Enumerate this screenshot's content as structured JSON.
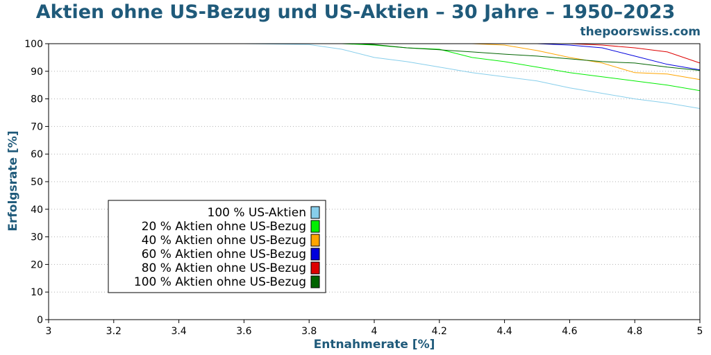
{
  "chart_data": {
    "type": "line",
    "title": "Aktien ohne US-Bezug und US-Aktien – 30 Jahre – 1950–2023",
    "source": "thepoorswiss.com",
    "xlabel": "Entnahmerate [%]",
    "ylabel": "Erfolgsrate [%]",
    "xlim": [
      3,
      5
    ],
    "ylim": [
      0,
      100
    ],
    "x_ticks": [
      "3",
      "3.2",
      "3.4",
      "3.6",
      "3.8",
      "4",
      "4.2",
      "4.4",
      "4.6",
      "4.8",
      "5"
    ],
    "y_ticks": [
      "0",
      "10",
      "20",
      "30",
      "40",
      "50",
      "60",
      "70",
      "80",
      "90",
      "100"
    ],
    "grid": "horizontal-dotted",
    "legend_position": "bottom-left",
    "series": [
      {
        "name": "100 % US-Aktien",
        "color": "#87ceeb",
        "points": [
          [
            3.0,
            100
          ],
          [
            3.6,
            100
          ],
          [
            3.8,
            99.7
          ],
          [
            3.9,
            98
          ],
          [
            4.0,
            95
          ],
          [
            4.1,
            93.5
          ],
          [
            4.2,
            91.5
          ],
          [
            4.3,
            89.5
          ],
          [
            4.4,
            88
          ],
          [
            4.5,
            86.5
          ],
          [
            4.6,
            84
          ],
          [
            4.7,
            82
          ],
          [
            4.8,
            80
          ],
          [
            4.9,
            78.5
          ],
          [
            5.0,
            76.5
          ]
        ]
      },
      {
        "name": "20 % Aktien ohne US-Bezug",
        "color": "#00ee00",
        "points": [
          [
            3.0,
            100
          ],
          [
            3.9,
            100
          ],
          [
            4.0,
            99.5
          ],
          [
            4.1,
            98.5
          ],
          [
            4.2,
            98
          ],
          [
            4.3,
            95
          ],
          [
            4.4,
            93.5
          ],
          [
            4.5,
            91.5
          ],
          [
            4.6,
            89.5
          ],
          [
            4.7,
            88
          ],
          [
            4.8,
            86.5
          ],
          [
            4.9,
            85
          ],
          [
            5.0,
            83
          ]
        ]
      },
      {
        "name": "40 % Aktien ohne US-Bezug",
        "color": "#ffa500",
        "points": [
          [
            3.0,
            100
          ],
          [
            4.3,
            100
          ],
          [
            4.4,
            99.5
          ],
          [
            4.5,
            97.5
          ],
          [
            4.6,
            95
          ],
          [
            4.7,
            93
          ],
          [
            4.8,
            89.5
          ],
          [
            4.9,
            89
          ],
          [
            5.0,
            87
          ]
        ]
      },
      {
        "name": "60 % Aktien ohne US-Bezug",
        "color": "#0000dd",
        "points": [
          [
            3.0,
            100
          ],
          [
            4.5,
            100
          ],
          [
            4.6,
            99.5
          ],
          [
            4.7,
            98.5
          ],
          [
            4.8,
            95.5
          ],
          [
            4.9,
            92.5
          ],
          [
            5.0,
            90.5
          ]
        ]
      },
      {
        "name": "80 % Aktien ohne US-Bezug",
        "color": "#dd0000",
        "points": [
          [
            3.0,
            100
          ],
          [
            4.6,
            100
          ],
          [
            4.7,
            99.5
          ],
          [
            4.8,
            98.5
          ],
          [
            4.9,
            97
          ],
          [
            5.0,
            93
          ]
        ]
      },
      {
        "name": "100 % Aktien ohne US-Bezug",
        "color": "#006400",
        "points": [
          [
            3.0,
            100
          ],
          [
            3.95,
            100
          ],
          [
            4.0,
            99.7
          ],
          [
            4.1,
            98.5
          ],
          [
            4.2,
            97.8
          ],
          [
            4.3,
            97
          ],
          [
            4.4,
            96.2
          ],
          [
            4.5,
            95.5
          ],
          [
            4.6,
            94.5
          ],
          [
            4.7,
            93.5
          ],
          [
            4.8,
            93
          ],
          [
            4.9,
            91.5
          ],
          [
            5.0,
            90.3
          ]
        ]
      }
    ]
  }
}
